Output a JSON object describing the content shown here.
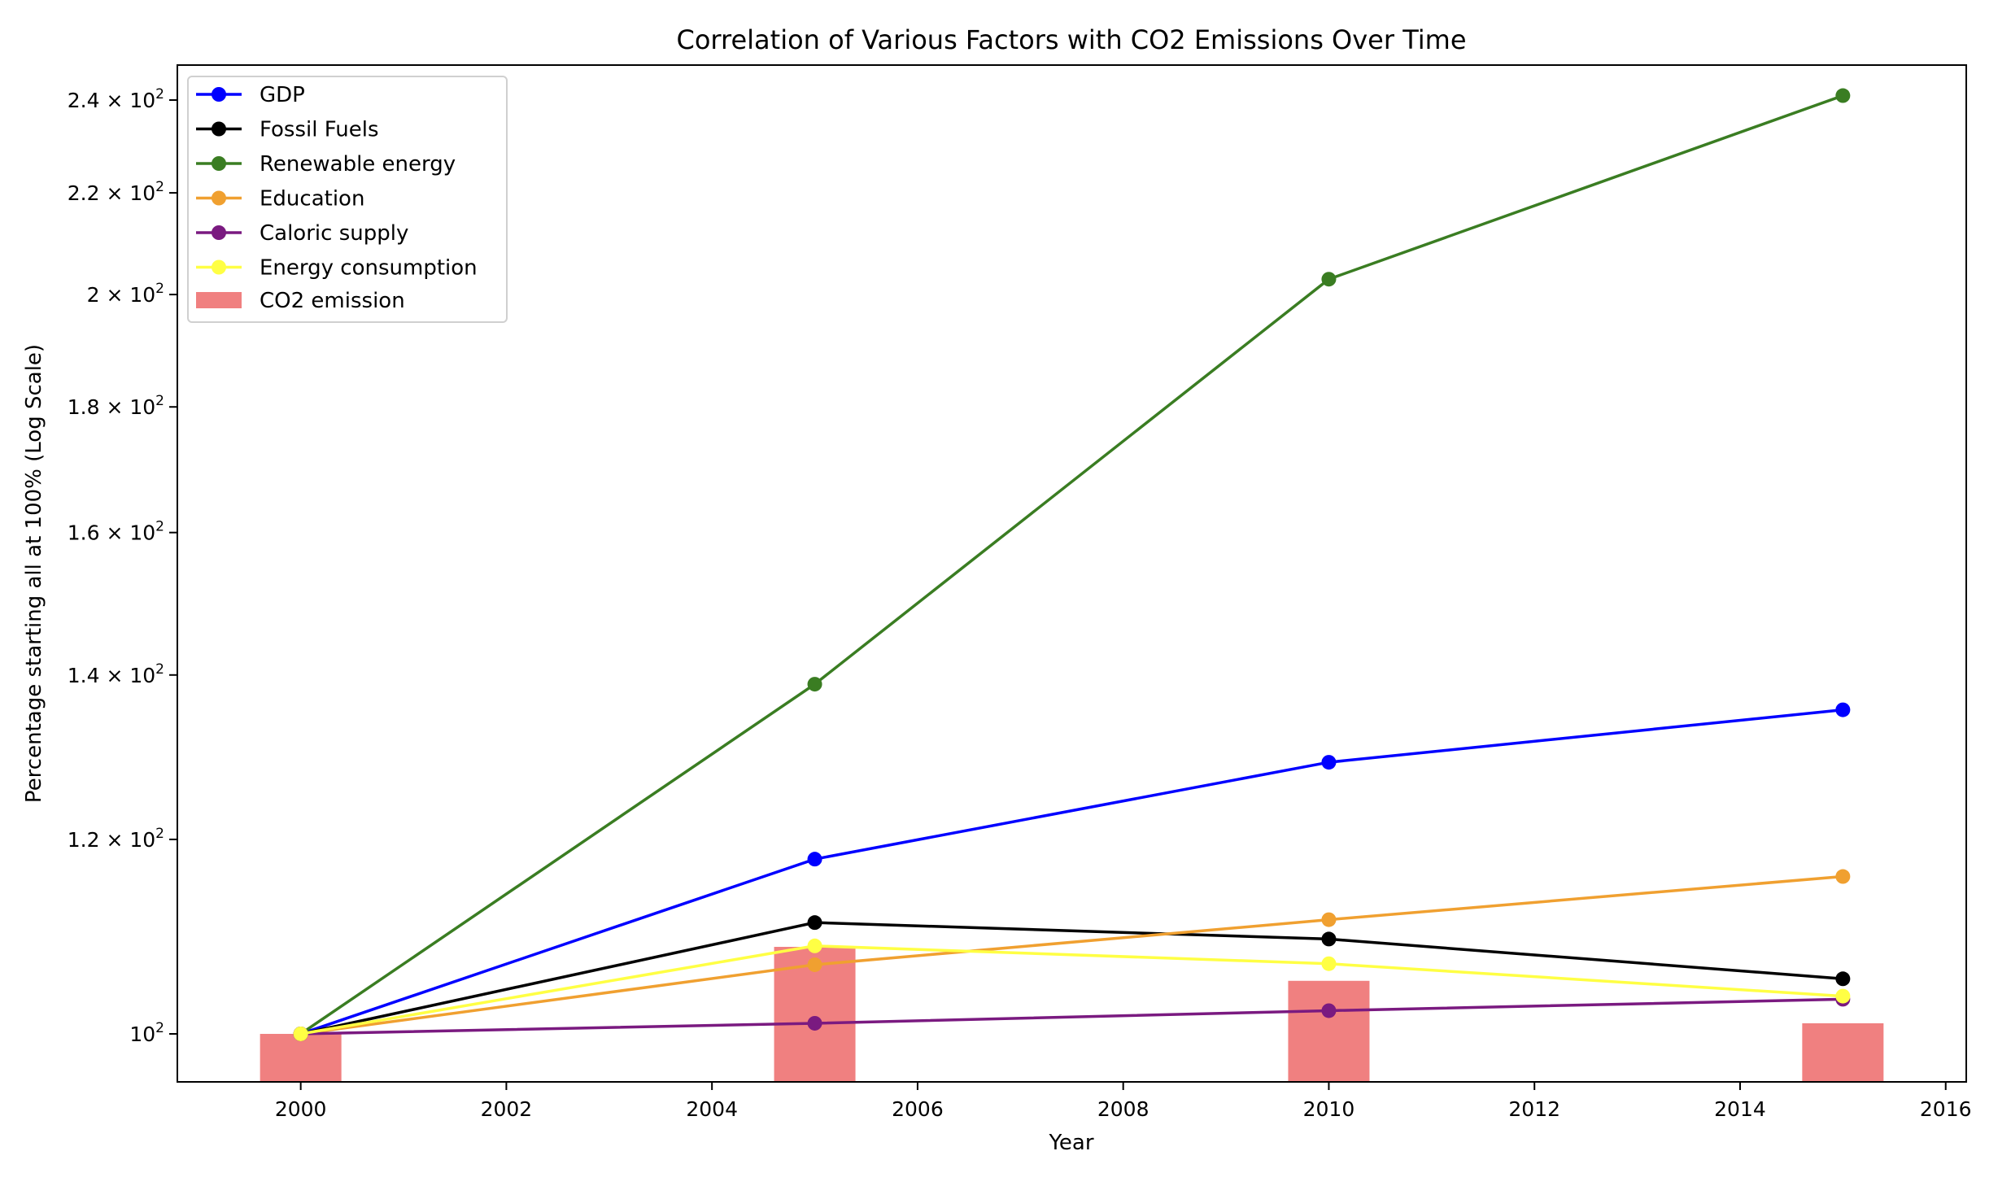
{
  "chart_data": {
    "type": "line",
    "title": "Correlation of Various Factors with CO2 Emissions Over Time",
    "xlabel": "Year",
    "ylabel": "Percentage starting all at 100% (Log Scale)",
    "yscale": "log",
    "xlim": [
      1998.8,
      2016.2
    ],
    "ylim": [
      95.6,
      248
    ],
    "x": [
      2000,
      2005,
      2010,
      2015
    ],
    "x_ticks": [
      2000,
      2002,
      2004,
      2006,
      2008,
      2010,
      2012,
      2014,
      2016
    ],
    "y_ticks": [
      {
        "value": 100,
        "base": "10",
        "exp": "2"
      },
      {
        "value": 120,
        "base": "1.2 × 10",
        "exp": "2"
      },
      {
        "value": 140,
        "base": "1.4 × 10",
        "exp": "2"
      },
      {
        "value": 160,
        "base": "1.6 × 10",
        "exp": "2"
      },
      {
        "value": 180,
        "base": "1.8 × 10",
        "exp": "2"
      },
      {
        "value": 200,
        "base": "2 × 10",
        "exp": "2"
      },
      {
        "value": 220,
        "base": "2.2 × 10",
        "exp": "2"
      },
      {
        "value": 240,
        "base": "2.4 × 10",
        "exp": "2"
      }
    ],
    "series": [
      {
        "name": "GDP",
        "color": "#0000ff",
        "values": [
          100,
          117.8,
          129.0,
          135.5
        ]
      },
      {
        "name": "Fossil Fuels",
        "color": "#000000",
        "values": [
          100,
          111.0,
          109.3,
          105.3
        ]
      },
      {
        "name": "Renewable energy",
        "color": "#3a7d22",
        "values": [
          100,
          138.8,
          202.9,
          241.0
        ]
      },
      {
        "name": "Education",
        "color": "#f0a030",
        "values": [
          100,
          106.7,
          111.3,
          115.9
        ]
      },
      {
        "name": "Caloric supply",
        "color": "#7a1a80",
        "values": [
          100,
          101.0,
          102.2,
          103.3
        ]
      },
      {
        "name": "Energy consumption",
        "color": "#ffff44",
        "values": [
          100,
          108.6,
          106.8,
          103.6
        ]
      }
    ],
    "bars": {
      "name": "CO2 emission",
      "color": "#f08080",
      "values": [
        100,
        108.5,
        105.1,
        101.0
      ]
    },
    "legend_position": "upper-left",
    "grid": false
  }
}
